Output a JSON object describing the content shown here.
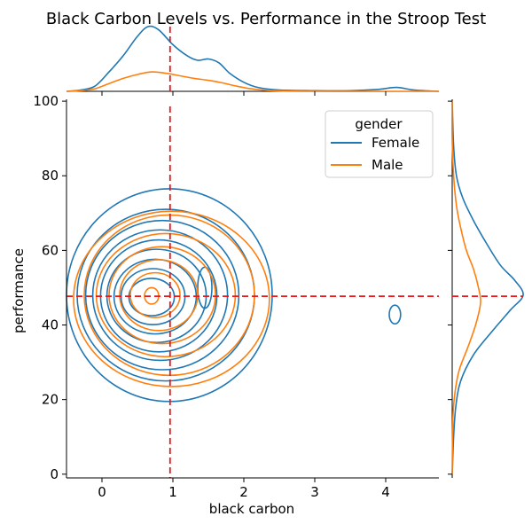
{
  "chart_data": {
    "type": "kde-joint",
    "title": "Black Carbon Levels vs. Performance in the Stroop Test",
    "xlabel": "black carbon",
    "ylabel": "performance",
    "xlim": [
      -0.5,
      4.75
    ],
    "ylim": [
      -1,
      100.5
    ],
    "x_ticks": [
      0,
      1,
      2,
      3,
      4
    ],
    "y_ticks": [
      0,
      20,
      40,
      60,
      80,
      100
    ],
    "legend": {
      "title": "gender",
      "placement": "top-right",
      "entries": [
        "Female",
        "Male"
      ]
    },
    "reference_lines": {
      "vertical_x": 0.96,
      "horizontal_y": 47.7,
      "color": "#e41a1c",
      "style": "dashed"
    },
    "series": [
      {
        "name": "Female",
        "color": "#1f77b4",
        "density_peak": {
          "x": 0.65,
          "y": 47.5
        },
        "contours": [
          {
            "cx": 0.95,
            "cy": 48,
            "rx": 1.45,
            "ry": 28.5
          },
          {
            "cx": 0.9,
            "cy": 48,
            "rx": 1.25,
            "ry": 23
          },
          {
            "cx": 0.85,
            "cy": 48,
            "rx": 1.08,
            "ry": 20
          },
          {
            "cx": 0.82,
            "cy": 48,
            "rx": 0.95,
            "ry": 17.5
          },
          {
            "cx": 0.8,
            "cy": 47.8,
            "rx": 0.82,
            "ry": 15
          },
          {
            "cx": 0.77,
            "cy": 47.8,
            "rx": 0.7,
            "ry": 12.5
          },
          {
            "cx": 0.75,
            "cy": 47.6,
            "rx": 0.58,
            "ry": 10
          },
          {
            "cx": 0.72,
            "cy": 47.6,
            "rx": 0.45,
            "ry": 7.5
          },
          {
            "cx": 0.7,
            "cy": 47.5,
            "rx": 0.32,
            "ry": 5
          },
          {
            "cx": 1.45,
            "cy": 50,
            "rx": 0.1,
            "ry": 5.5
          },
          {
            "cx": 4.13,
            "cy": 42.8,
            "rx": 0.08,
            "ry": 2.5
          }
        ],
        "marginal_x": [
          [
            -0.5,
            0.0
          ],
          [
            -0.3,
            0.02
          ],
          [
            -0.1,
            0.08
          ],
          [
            0.1,
            0.3
          ],
          [
            0.3,
            0.55
          ],
          [
            0.5,
            0.85
          ],
          [
            0.65,
            1.0
          ],
          [
            0.8,
            0.95
          ],
          [
            1.0,
            0.72
          ],
          [
            1.2,
            0.55
          ],
          [
            1.35,
            0.48
          ],
          [
            1.5,
            0.5
          ],
          [
            1.65,
            0.44
          ],
          [
            1.8,
            0.28
          ],
          [
            2.0,
            0.14
          ],
          [
            2.2,
            0.06
          ],
          [
            2.5,
            0.02
          ],
          [
            3.0,
            0.01
          ],
          [
            3.5,
            0.01
          ],
          [
            3.9,
            0.03
          ],
          [
            4.15,
            0.06
          ],
          [
            4.4,
            0.02
          ],
          [
            4.75,
            0.0
          ]
        ],
        "marginal_y": [
          [
            0,
            0.0
          ],
          [
            10,
            0.02
          ],
          [
            18,
            0.05
          ],
          [
            25,
            0.12
          ],
          [
            32,
            0.3
          ],
          [
            38,
            0.55
          ],
          [
            44,
            0.82
          ],
          [
            48,
            1.0
          ],
          [
            52,
            0.88
          ],
          [
            56,
            0.68
          ],
          [
            62,
            0.48
          ],
          [
            68,
            0.3
          ],
          [
            74,
            0.15
          ],
          [
            80,
            0.06
          ],
          [
            88,
            0.02
          ],
          [
            100,
            0.0
          ]
        ]
      },
      {
        "name": "Male",
        "color": "#ff7f0e",
        "density_peak": {
          "x": 0.7,
          "y": 47.5
        },
        "contours": [
          {
            "cx": 0.98,
            "cy": 47,
            "rx": 1.38,
            "ry": 23.5
          },
          {
            "cx": 0.95,
            "cy": 48,
            "rx": 1.2,
            "ry": 21.5
          },
          {
            "cx": 0.9,
            "cy": 48,
            "rx": 0.98,
            "ry": 16.5
          },
          {
            "cx": 0.85,
            "cy": 48,
            "rx": 0.75,
            "ry": 13
          },
          {
            "cx": 0.8,
            "cy": 48,
            "rx": 0.55,
            "ry": 9.5
          },
          {
            "cx": 0.75,
            "cy": 48,
            "rx": 0.35,
            "ry": 6
          },
          {
            "cx": 0.7,
            "cy": 47.8,
            "rx": 0.1,
            "ry": 2.2
          }
        ],
        "marginal_x": [
          [
            -0.5,
            0.0
          ],
          [
            -0.3,
            0.01
          ],
          [
            -0.1,
            0.04
          ],
          [
            0.1,
            0.12
          ],
          [
            0.3,
            0.2
          ],
          [
            0.5,
            0.26
          ],
          [
            0.7,
            0.3
          ],
          [
            0.9,
            0.28
          ],
          [
            1.1,
            0.24
          ],
          [
            1.3,
            0.2
          ],
          [
            1.5,
            0.17
          ],
          [
            1.7,
            0.13
          ],
          [
            1.9,
            0.08
          ],
          [
            2.1,
            0.04
          ],
          [
            2.4,
            0.01
          ],
          [
            3.0,
            0.0
          ],
          [
            4.75,
            0.0
          ]
        ],
        "marginal_y": [
          [
            0,
            0.0
          ],
          [
            15,
            0.01
          ],
          [
            22,
            0.04
          ],
          [
            28,
            0.1
          ],
          [
            34,
            0.22
          ],
          [
            40,
            0.33
          ],
          [
            46,
            0.4
          ],
          [
            50,
            0.37
          ],
          [
            55,
            0.3
          ],
          [
            60,
            0.2
          ],
          [
            66,
            0.12
          ],
          [
            72,
            0.06
          ],
          [
            80,
            0.02
          ],
          [
            90,
            0.0
          ],
          [
            100,
            0.0
          ]
        ]
      }
    ]
  }
}
